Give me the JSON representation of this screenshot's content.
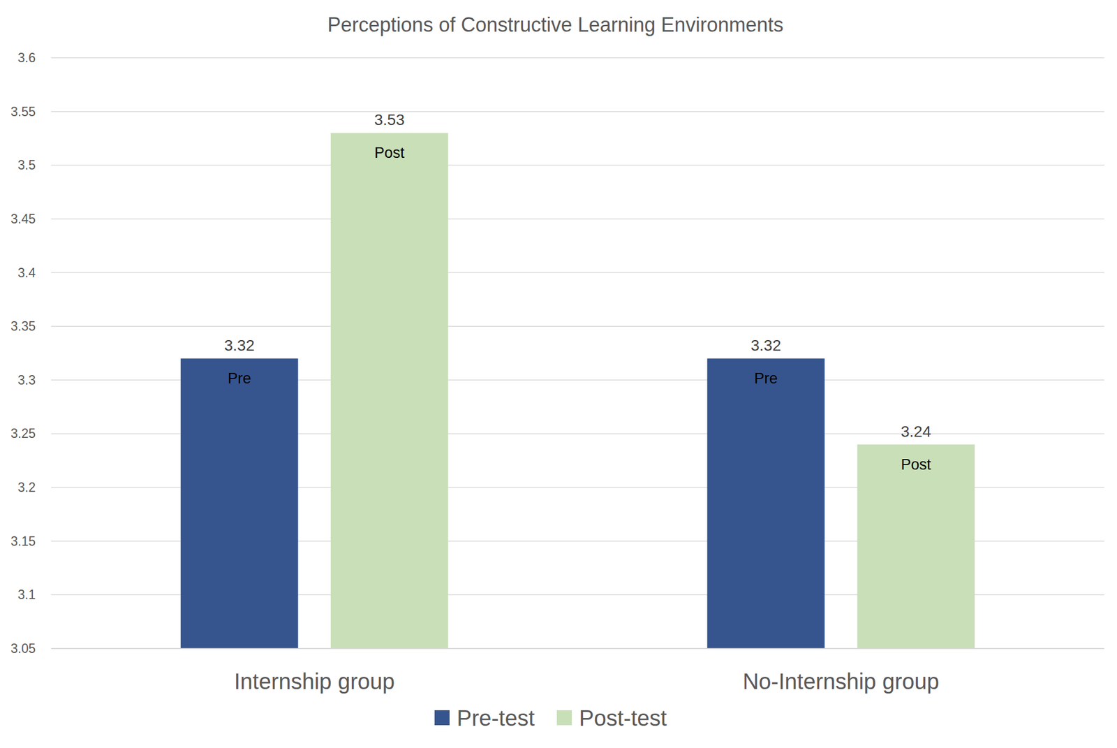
{
  "chart_data": {
    "type": "bar",
    "title": "Perceptions of Constructive Learning Environments",
    "categories": [
      "Internship group",
      "No-Internship group"
    ],
    "series": [
      {
        "name": "Pre-test",
        "color": "#36558f",
        "bar_label": "Pre",
        "values": [
          3.32,
          3.32
        ]
      },
      {
        "name": "Post-test",
        "color": "#c9dfb8",
        "bar_label": "Post",
        "values": [
          3.53,
          3.24
        ]
      }
    ],
    "ylim": [
      3.05,
      3.6
    ],
    "yticks": [
      3.05,
      3.1,
      3.15,
      3.2,
      3.25,
      3.3,
      3.35,
      3.4,
      3.45,
      3.5,
      3.55,
      3.6
    ],
    "grid": true,
    "legend": "bottom",
    "data_labels": true
  }
}
